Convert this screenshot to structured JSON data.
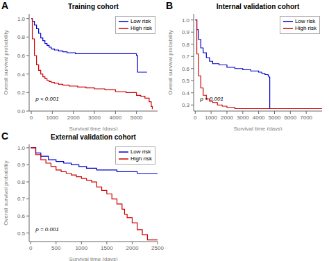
{
  "chart_data": [
    {
      "type": "step",
      "title": "Training cohort",
      "label": "A",
      "annotations": [
        "p < 0.001"
      ],
      "xlabel": "Survival time (days)",
      "ylabel": "Overall survival probability",
      "xlim": [
        -100,
        6000
      ],
      "xticks": [
        0,
        1000,
        2000,
        3000,
        4000,
        5000
      ],
      "ylim": [
        0.0,
        1.05
      ],
      "yticks": [
        {
          "value": 0.0,
          "label": "0.0"
        },
        0.2,
        0.4,
        0.6,
        0.8,
        {
          "value": 1.0,
          "label": "1.0"
        }
      ],
      "grid": false,
      "legend": "upper right",
      "series": [
        {
          "name": "Low risk",
          "color": "#0000cc",
          "x": [
            0,
            50,
            150,
            250,
            350,
            450,
            550,
            650,
            750,
            850,
            950,
            1100,
            1300,
            1500,
            1700,
            1900,
            2100,
            2500,
            3000,
            3500,
            4000,
            4500,
            4900,
            5000,
            5050,
            5100,
            5500
          ],
          "values": [
            1.0,
            0.97,
            0.93,
            0.89,
            0.84,
            0.79,
            0.76,
            0.73,
            0.71,
            0.69,
            0.67,
            0.66,
            0.65,
            0.64,
            0.63,
            0.63,
            0.62,
            0.62,
            0.62,
            0.62,
            0.62,
            0.62,
            0.62,
            0.6,
            0.42,
            0.42,
            0.42
          ]
        },
        {
          "name": "High risk",
          "color": "#cc0000",
          "x": [
            0,
            50,
            150,
            250,
            350,
            450,
            550,
            650,
            750,
            850,
            950,
            1100,
            1300,
            1500,
            1800,
            2200,
            2600,
            3000,
            3500,
            4000,
            4500,
            5000,
            5200,
            5400,
            5600,
            5700,
            5750
          ],
          "values": [
            1.0,
            0.78,
            0.6,
            0.5,
            0.44,
            0.4,
            0.37,
            0.35,
            0.33,
            0.32,
            0.31,
            0.3,
            0.29,
            0.28,
            0.27,
            0.26,
            0.25,
            0.24,
            0.23,
            0.21,
            0.2,
            0.17,
            0.16,
            0.14,
            0.1,
            0.05,
            0.02
          ]
        }
      ]
    },
    {
      "type": "step",
      "title": "Internal validation cohort",
      "label": "B",
      "annotations": [
        "p < 0.001"
      ],
      "xlabel": "Survival time (days)",
      "ylabel": "Overall survival probability",
      "xlim": [
        -100,
        8000
      ],
      "xticks": [
        0,
        1000,
        2000,
        3000,
        4000,
        5000,
        6000,
        7000
      ],
      "ylim": [
        0.25,
        1.05
      ],
      "yticks": [
        0.3,
        0.4,
        0.5,
        0.6,
        0.7,
        0.8,
        0.9,
        {
          "value": 1.0,
          "label": "1.0"
        }
      ],
      "grid": false,
      "legend": "upper right",
      "series": [
        {
          "name": "Low risk",
          "color": "#0000cc",
          "x": [
            0,
            100,
            200,
            350,
            500,
            700,
            900,
            1100,
            1500,
            2000,
            2500,
            3000,
            3500,
            4000,
            4200,
            4400,
            4600,
            4650,
            4700,
            5000,
            6000,
            7000,
            8000
          ],
          "values": [
            1.0,
            0.92,
            0.84,
            0.77,
            0.73,
            0.69,
            0.66,
            0.64,
            0.63,
            0.61,
            0.6,
            0.59,
            0.58,
            0.57,
            0.56,
            0.55,
            0.54,
            0.53,
            0.27,
            0.27,
            0.27,
            0.27,
            0.27
          ]
        },
        {
          "name": "High risk",
          "color": "#cc0000",
          "x": [
            0,
            100,
            200,
            350,
            500,
            700,
            900,
            1100,
            1400,
            1700,
            2000,
            2500,
            3000,
            4000,
            5000,
            6000,
            7000,
            8000
          ],
          "values": [
            1.0,
            0.72,
            0.54,
            0.44,
            0.38,
            0.35,
            0.33,
            0.32,
            0.3,
            0.29,
            0.28,
            0.27,
            0.27,
            0.27,
            0.27,
            0.27,
            0.27,
            0.27
          ]
        }
      ]
    },
    {
      "type": "step",
      "title": "External validation cohort",
      "label": "C",
      "annotations": [
        "p = 0.001"
      ],
      "xlabel": "Survival time (days)",
      "ylabel": "Overall survival probability",
      "xlim": [
        -30,
        2500
      ],
      "xticks": [
        0,
        500,
        1000,
        1500,
        2000,
        2500
      ],
      "ylim": [
        0.45,
        1.02
      ],
      "yticks": [
        0.5,
        0.6,
        0.7,
        0.8,
        0.9,
        {
          "value": 1.0,
          "label": "1.0"
        }
      ],
      "grid": false,
      "legend": "upper right",
      "series": [
        {
          "name": "Low risk",
          "color": "#0000cc",
          "x": [
            0,
            100,
            200,
            350,
            500,
            650,
            800,
            950,
            1100,
            1300,
            1500,
            1700,
            1900,
            2100,
            2500
          ],
          "values": [
            1.0,
            0.97,
            0.95,
            0.93,
            0.92,
            0.91,
            0.9,
            0.89,
            0.88,
            0.87,
            0.87,
            0.86,
            0.86,
            0.85,
            0.85
          ]
        },
        {
          "name": "High risk",
          "color": "#cc0000",
          "x": [
            0,
            100,
            200,
            300,
            400,
            500,
            600,
            700,
            800,
            900,
            1000,
            1100,
            1200,
            1300,
            1400,
            1500,
            1600,
            1700,
            1800,
            1850,
            1900,
            2000,
            2100,
            2200,
            2300,
            2400,
            2500
          ],
          "values": [
            1.0,
            0.96,
            0.93,
            0.91,
            0.89,
            0.87,
            0.86,
            0.85,
            0.84,
            0.83,
            0.82,
            0.81,
            0.8,
            0.77,
            0.75,
            0.73,
            0.7,
            0.67,
            0.64,
            0.61,
            0.59,
            0.56,
            0.52,
            0.49,
            0.46,
            0.46,
            0.46
          ]
        }
      ]
    }
  ]
}
